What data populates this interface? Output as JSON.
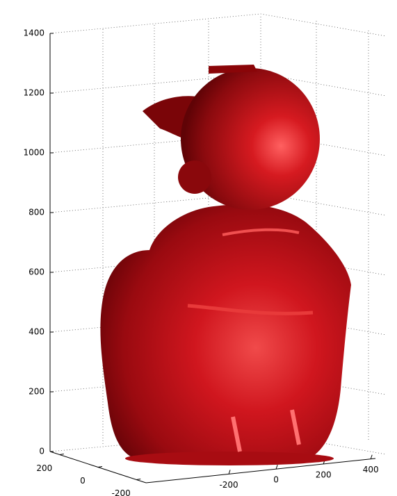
{
  "chart_data": {
    "type": "surface3d",
    "zlim": [
      0,
      1400
    ],
    "zticks": [
      0,
      200,
      400,
      600,
      800,
      1000,
      1200,
      1400
    ],
    "xlim": [
      -550,
      420
    ],
    "xticks": [
      -200,
      0,
      200,
      400
    ],
    "ylim": [
      -250,
      250
    ],
    "yticks": [
      200,
      0,
      -200
    ],
    "grid": true,
    "color": "#c0101a"
  }
}
